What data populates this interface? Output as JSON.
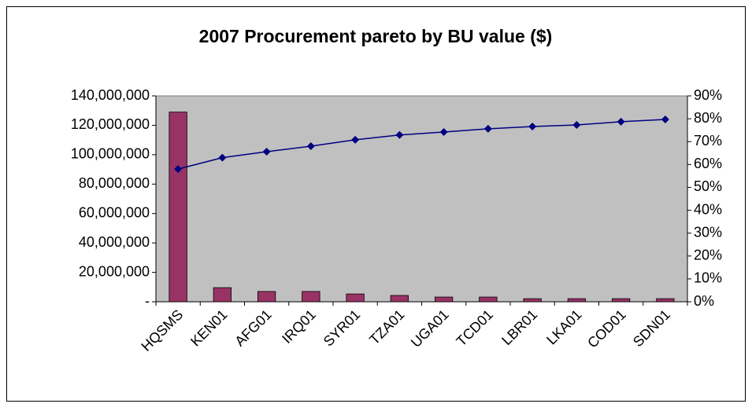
{
  "chart_data": {
    "type": "bar",
    "title": "2007 Procurement pareto by BU value ($)",
    "categories": [
      "HQSMS",
      "KEN01",
      "AFG01",
      "IRQ01",
      "SYR01",
      "TZA01",
      "UGA01",
      "TCD01",
      "LBR01",
      "LKA01",
      "COD01",
      "SDN01"
    ],
    "series": [
      {
        "color": "#993366",
        "values": [
          129000000,
          9600000,
          7000000,
          7000000,
          5300000,
          4300000,
          3200000,
          3200000,
          2100000,
          2100000,
          2100000,
          2100000
        ]
      },
      {
        "type": "line",
        "axis": "y2",
        "color": "#000080",
        "values": [
          58,
          63,
          65.6,
          68,
          70.8,
          72.9,
          74.2,
          75.6,
          76.6,
          77.3,
          78.7,
          79.7
        ]
      }
    ],
    "ylim": [
      0,
      140000000
    ],
    "yticks": [
      {
        "value": 0,
        "label": "-"
      },
      {
        "value": 20000000,
        "label": "20,000,000"
      },
      {
        "value": 40000000,
        "label": "40,000,000"
      },
      {
        "value": 60000000,
        "label": "60,000,000"
      },
      {
        "value": 80000000,
        "label": "80,000,000"
      },
      {
        "value": 100000000,
        "label": "100,000,000"
      },
      {
        "value": 120000000,
        "label": "120,000,000"
      },
      {
        "value": 140000000,
        "label": "140,000,000"
      }
    ],
    "y2lim": [
      0,
      90
    ],
    "y2ticks": [
      {
        "value": 0,
        "label": "0%"
      },
      {
        "value": 10,
        "label": "10%"
      },
      {
        "value": 20,
        "label": "20%"
      },
      {
        "value": 30,
        "label": "30%"
      },
      {
        "value": 40,
        "label": "40%"
      },
      {
        "value": 50,
        "label": "50%"
      },
      {
        "value": 60,
        "label": "60%"
      },
      {
        "value": 70,
        "label": "70%"
      },
      {
        "value": 80,
        "label": "80%"
      },
      {
        "value": 90,
        "label": "90%"
      }
    ],
    "plot_background": "#c0c0c0"
  }
}
